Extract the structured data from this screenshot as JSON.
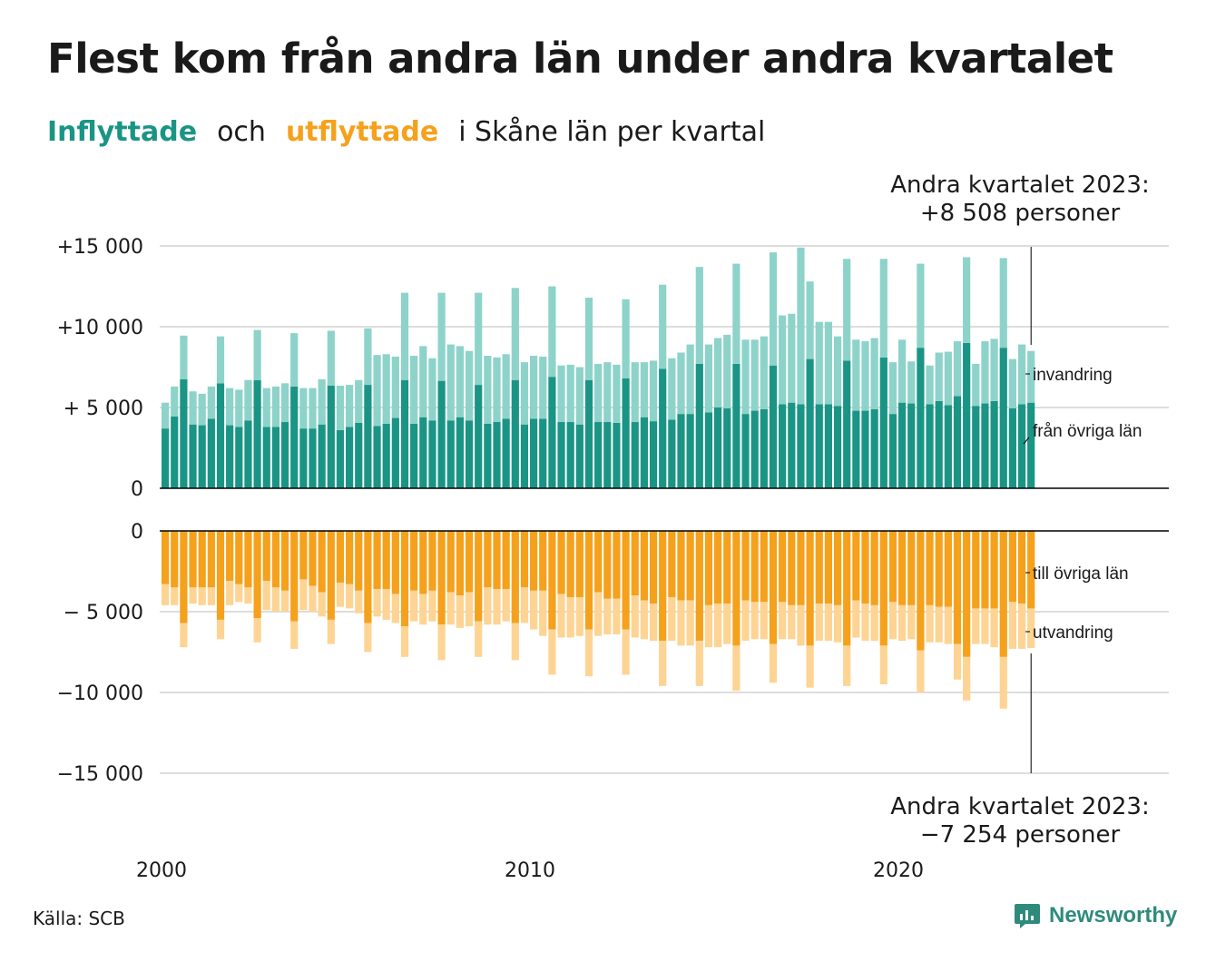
{
  "title": "Flest kom från andra län under andra kvartalet",
  "subtitle": {
    "inflow": "Inflyttade",
    "and": "och",
    "outflow": "utflyttade",
    "rest": "i Skåne  län  per  kvartal"
  },
  "annotations": {
    "top_line1": "Andra kvartalet 2023:",
    "top_line2": "+8 508 personer",
    "bottom_line1": "Andra kvartalet 2023:",
    "bottom_line2": "−7 254 personer"
  },
  "source": "Källa: SCB",
  "brand": "Newsworthy",
  "colors": {
    "in_domestic": "#1a9585",
    "in_immigration": "#8dd3ca",
    "out_domestic": "#f5a11c",
    "out_emigration": "#fdd493",
    "grid": "#dddddd",
    "axis": "#000000",
    "brand": "#2e8b7c"
  },
  "chart_data": {
    "type": "bar",
    "stacked": true,
    "x_unit": "quarter",
    "x_start": "2000 Q1",
    "x_end": "2023 Q2",
    "x_ticks": [
      "2000",
      "2010",
      "2020"
    ],
    "panels": [
      {
        "name": "inflyttade",
        "ylim": [
          0,
          15000
        ],
        "y_ticks": [
          0,
          5000,
          10000,
          15000
        ],
        "y_tick_labels": [
          "0",
          "+ 5 000",
          "+10 000",
          "+15 000"
        ],
        "series": [
          {
            "name": "från övriga län",
            "values": [
              3700,
              4450,
              6750,
              3950,
              3900,
              4300,
              6500,
              3900,
              3800,
              4200,
              6700,
              3800,
              3800,
              4100,
              6300,
              3700,
              3700,
              3950,
              6350,
              3600,
              3800,
              4050,
              6400,
              3850,
              4000,
              4350,
              6700,
              4000,
              4400,
              4200,
              6650,
              4200,
              4400,
              4200,
              6400,
              4000,
              4100,
              4300,
              6700,
              3950,
              4300,
              4300,
              6900,
              4100,
              4100,
              3950,
              6700,
              4100,
              4100,
              4050,
              6800,
              4100,
              4400,
              4150,
              7400,
              4250,
              4600,
              4600,
              7700,
              4700,
              5000,
              4950,
              7700,
              4600,
              4800,
              4900,
              7600,
              5200,
              5300,
              5200,
              8000,
              5200,
              5200,
              5100,
              7900,
              4800,
              4800,
              4900,
              8100,
              4600,
              5300,
              5250,
              8700,
              5200,
              5400,
              5150,
              5700,
              9000,
              5100,
              5250,
              5400,
              8700,
              4950,
              5200,
              5300
            ]
          },
          {
            "name": "invandring",
            "values": [
              1600,
              1850,
              2700,
              2050,
              1950,
              2000,
              2900,
              2300,
              2300,
              2500,
              3100,
              2400,
              2500,
              2400,
              3300,
              2500,
              2500,
              2800,
              3400,
              2750,
              2600,
              2650,
              3500,
              4400,
              4300,
              3800,
              5400,
              4200,
              4400,
              3850,
              5450,
              4700,
              4400,
              4300,
              5700,
              4200,
              4000,
              4000,
              5700,
              3850,
              3900,
              3850,
              5600,
              3500,
              3550,
              3550,
              5100,
              3600,
              3700,
              3600,
              4900,
              3700,
              3400,
              3750,
              5200,
              3800,
              3800,
              4300,
              6000,
              4200,
              4300,
              4550,
              6200,
              4600,
              4400,
              4500,
              7000,
              5500,
              5500,
              9700,
              4800,
              5100,
              5100,
              4300,
              6300,
              4400,
              4300,
              4400,
              6100,
              3200,
              3900,
              2600,
              5200,
              2400,
              3000,
              3300,
              3400,
              5300,
              2600,
              3850,
              3850,
              5550,
              3050,
              3700,
              3200
            ]
          }
        ]
      },
      {
        "name": "utflyttade",
        "ylim": [
          -15000,
          0
        ],
        "y_ticks": [
          0,
          -5000,
          -10000,
          -15000
        ],
        "y_tick_labels": [
          "0",
          "− 5 000",
          "−10 000",
          "−15 000"
        ],
        "series": [
          {
            "name": "till övriga län",
            "values": [
              -3300,
              -3500,
              -5700,
              -3500,
              -3500,
              -3500,
              -5500,
              -3100,
              -3300,
              -3500,
              -5400,
              -3100,
              -3500,
              -3700,
              -5600,
              -3000,
              -3400,
              -3800,
              -5500,
              -3200,
              -3300,
              -3700,
              -5700,
              -3600,
              -3600,
              -3900,
              -5900,
              -3700,
              -3900,
              -3700,
              -5800,
              -3800,
              -4000,
              -3800,
              -5600,
              -3500,
              -3600,
              -3600,
              -5700,
              -3500,
              -3700,
              -3700,
              -6100,
              -3900,
              -4100,
              -4100,
              -6100,
              -3800,
              -4200,
              -4200,
              -6100,
              -4000,
              -4300,
              -4500,
              -6800,
              -4100,
              -4300,
              -4300,
              -6800,
              -4600,
              -4500,
              -4500,
              -7100,
              -4300,
              -4400,
              -4400,
              -7000,
              -4400,
              -4600,
              -4600,
              -7100,
              -4500,
              -4500,
              -4600,
              -7100,
              -4300,
              -4500,
              -4600,
              -7100,
              -4400,
              -4600,
              -4600,
              -7400,
              -4600,
              -4700,
              -4700,
              -7000,
              -7800,
              -4800,
              -4800,
              -4800,
              -7800,
              -4400,
              -4500,
              -4800
            ]
          },
          {
            "name": "utvandring",
            "values": [
              -1300,
              -1100,
              -1500,
              -1000,
              -1100,
              -1100,
              -1200,
              -1500,
              -1100,
              -1000,
              -1500,
              -1800,
              -1500,
              -1300,
              -1700,
              -1900,
              -1600,
              -1500,
              -1500,
              -1500,
              -1500,
              -1400,
              -1800,
              -1700,
              -1900,
              -1800,
              -1900,
              -1900,
              -1900,
              -1900,
              -2200,
              -2000,
              -2000,
              -2100,
              -2200,
              -2300,
              -2200,
              -2000,
              -2300,
              -2200,
              -2400,
              -2800,
              -2800,
              -2700,
              -2500,
              -2400,
              -2900,
              -2700,
              -2200,
              -2200,
              -2800,
              -2600,
              -2400,
              -2300,
              -2800,
              -2700,
              -2800,
              -2800,
              -2800,
              -2600,
              -2700,
              -2500,
              -2800,
              -2500,
              -2300,
              -2300,
              -2400,
              -2300,
              -2100,
              -2500,
              -2600,
              -2300,
              -2300,
              -2300,
              -2500,
              -2300,
              -2300,
              -2200,
              -2400,
              -2300,
              -2200,
              -2100,
              -2600,
              -2300,
              -2200,
              -2300,
              -2200,
              -2700,
              -2200,
              -2200,
              -2400,
              -3200,
              -2900,
              -2800,
              -2454
            ]
          }
        ]
      }
    ],
    "series_labels": [
      "invandring",
      "från övriga län",
      "till övriga län",
      "utvandring"
    ]
  }
}
